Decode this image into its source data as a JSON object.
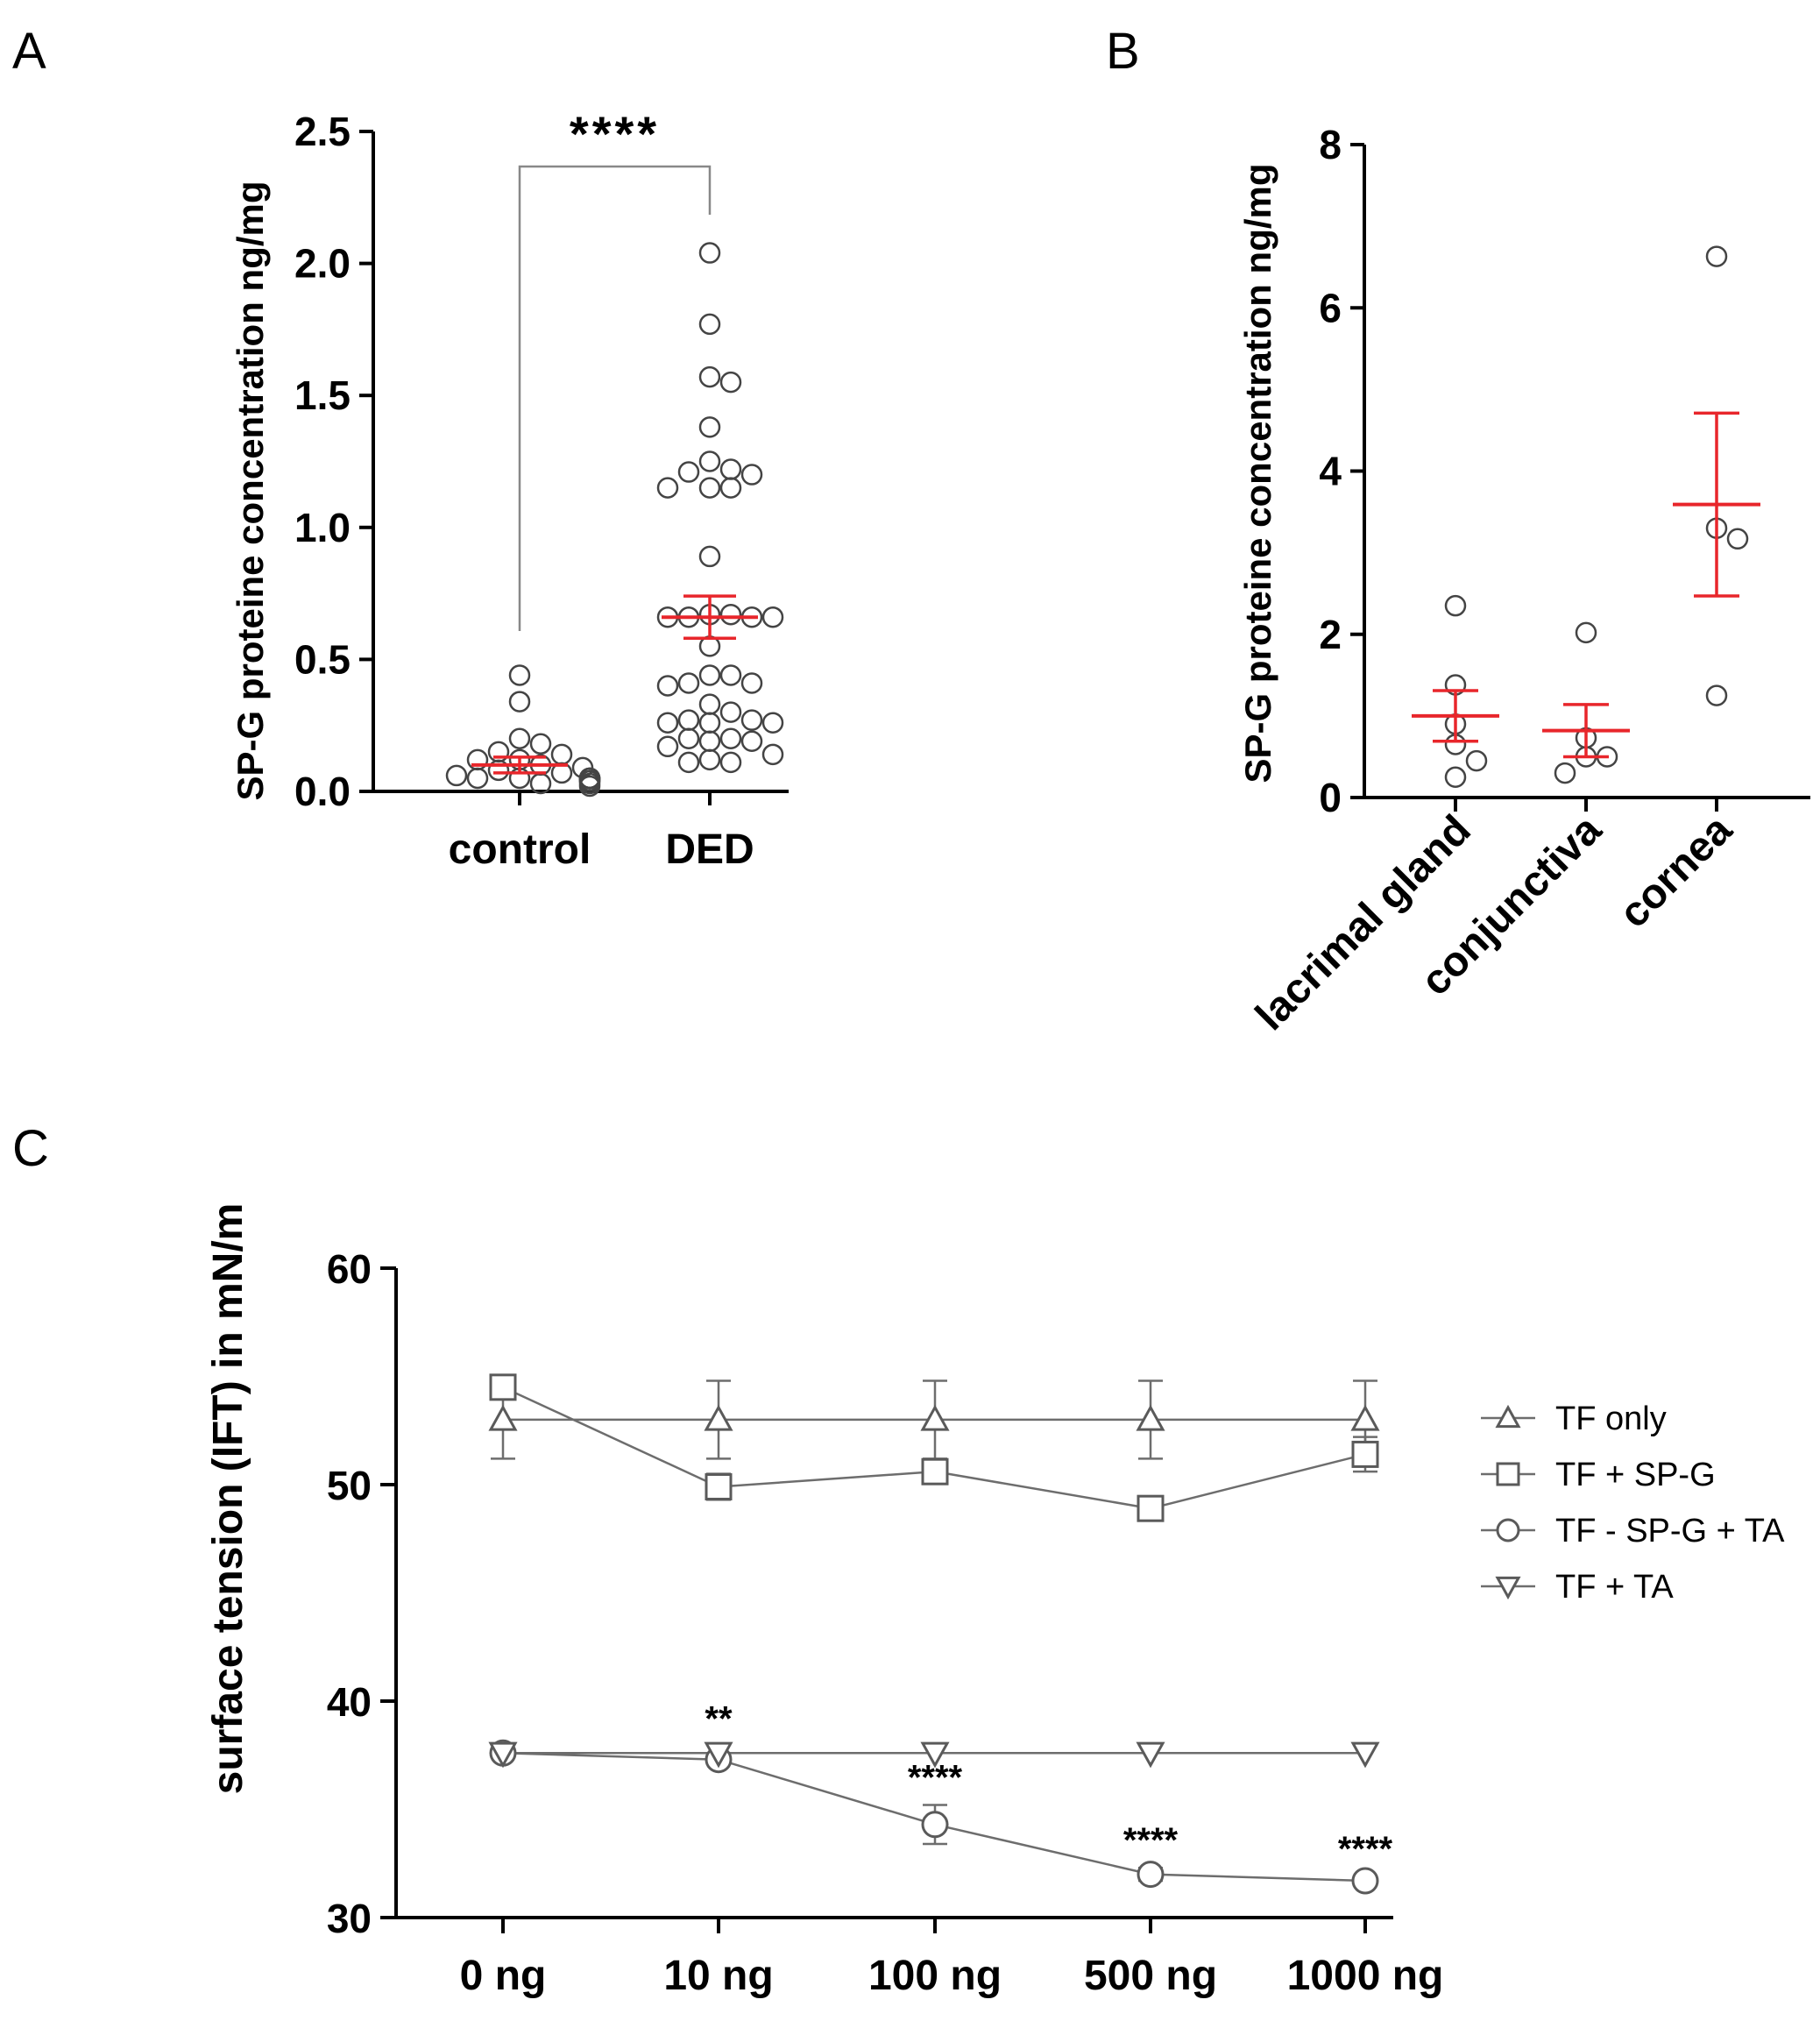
{
  "chart_data": [
    {
      "panel": "A",
      "type": "scatter",
      "ylabel": "SP-G proteine concentration ng/mg",
      "categories": [
        "control",
        "DED"
      ],
      "ylim": [
        0,
        2.5
      ],
      "yticks": [
        "0.0",
        "0.5",
        "1.0",
        "1.5",
        "2.0",
        "2.5"
      ],
      "points": {
        "control": [
          0.44,
          0.34,
          0.2,
          0.18,
          0.15,
          0.14,
          0.12,
          0.12,
          0.1,
          0.09,
          0.08,
          0.07,
          0.06,
          0.05,
          0.05,
          0.05,
          0.05,
          0.05,
          0.05,
          0.04,
          0.04,
          0.04,
          0.03,
          0.03,
          0.02
        ],
        "DED": [
          2.04,
          1.77,
          1.57,
          1.55,
          1.38,
          1.25,
          1.22,
          1.21,
          1.2,
          1.15,
          1.15,
          1.15,
          0.89,
          0.67,
          0.67,
          0.66,
          0.66,
          0.66,
          0.66,
          0.55,
          0.44,
          0.44,
          0.41,
          0.41,
          0.4,
          0.33,
          0.3,
          0.27,
          0.27,
          0.26,
          0.26,
          0.26,
          0.2,
          0.2,
          0.19,
          0.19,
          0.17,
          0.14,
          0.12,
          0.11,
          0.11
        ]
      },
      "mean": {
        "control": 0.1,
        "DED": 0.66
      },
      "sem": {
        "control": 0.03,
        "DED": 0.08
      },
      "significance": "****"
    },
    {
      "panel": "B",
      "type": "scatter",
      "ylabel": "SP-G proteine concentration ng/mg",
      "categories": [
        "lacrimal gland",
        "conjunctiva",
        "cornea"
      ],
      "ylim": [
        0,
        8
      ],
      "yticks": [
        "0",
        "2",
        "4",
        "6",
        "8"
      ],
      "points": {
        "lacrimal gland": [
          2.35,
          1.38,
          0.9,
          0.65,
          0.45,
          0.25
        ],
        "conjunctiva": [
          2.02,
          0.73,
          0.5,
          0.5,
          0.3
        ],
        "cornea": [
          6.63,
          3.3,
          3.17,
          1.25
        ]
      },
      "mean": {
        "lacrimal gland": 1.0,
        "conjunctiva": 0.82,
        "cornea": 3.59
      },
      "sem": {
        "lacrimal gland": 0.31,
        "conjunctiva": 0.32,
        "cornea": 1.12
      }
    },
    {
      "panel": "C",
      "type": "line",
      "ylabel": "surface tension (IFT) in mN/m",
      "categories": [
        "0 ng",
        "10 ng",
        "100 ng",
        "500 ng",
        "1000 ng"
      ],
      "ylim": [
        30,
        60
      ],
      "yticks": [
        "30",
        "40",
        "50",
        "60"
      ],
      "legend_position": "right",
      "series": [
        {
          "name": "TF only",
          "marker": "triangle-up",
          "values": [
            53.0,
            53.0,
            53.0,
            53.0,
            53.0
          ],
          "err": [
            1.8,
            1.8,
            1.8,
            1.8,
            1.8
          ]
        },
        {
          "name": "TF + SP-G",
          "marker": "square",
          "values": [
            54.5,
            49.9,
            50.6,
            48.9,
            51.4
          ],
          "err": [
            0.3,
            0.6,
            0.3,
            0.3,
            0.8
          ]
        },
        {
          "name": "TF - SP-G + TA",
          "marker": "circle",
          "values": [
            37.6,
            37.3,
            34.3,
            32.0,
            31.7
          ],
          "err": [
            0.2,
            0.2,
            0.9,
            0.3,
            0.2
          ]
        },
        {
          "name": "TF + TA",
          "marker": "triangle-down",
          "values": [
            37.6,
            37.6,
            37.6,
            37.6,
            37.6
          ],
          "err": [
            0,
            0,
            0,
            0,
            0
          ]
        }
      ],
      "significance": [
        "",
        "**",
        "****",
        "****",
        "****"
      ]
    }
  ],
  "labels": {
    "panel_a": "A",
    "panel_b": "B",
    "panel_c": "C"
  }
}
